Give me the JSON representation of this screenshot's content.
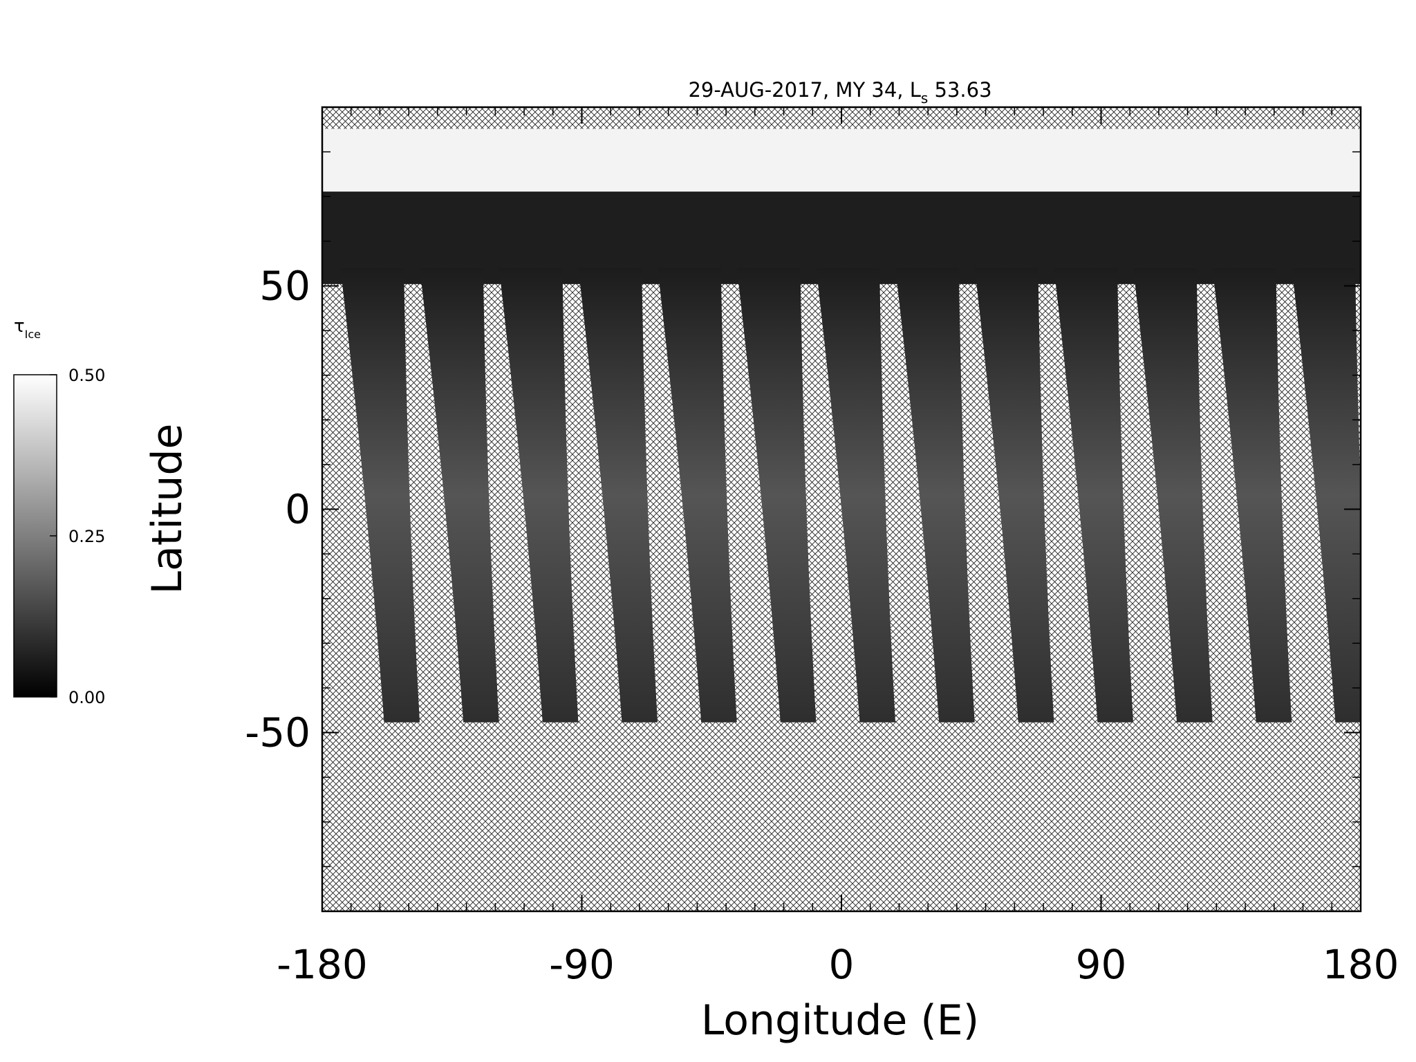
{
  "chart_data": {
    "type": "image_map",
    "title": [
      "29-AUG-2017, MY 34,  L",
      "s",
      " 53.63"
    ],
    "xlabel": "Longitude (E)",
    "ylabel": "Latitude",
    "xlim": [
      -180,
      180
    ],
    "xticks": [
      -180,
      -90,
      0,
      90,
      180
    ],
    "ylim": [
      -90,
      90
    ],
    "yticks": [
      -50,
      0,
      50
    ],
    "colorbar": {
      "label": "τ",
      "label_sub": "Ice",
      "lim": [
        0,
        0.5
      ],
      "ticks": [
        {
          "value": 0,
          "label": "0.00"
        },
        {
          "value": 0.25,
          "label": "0.25"
        },
        {
          "value": 0.5,
          "label": "0.50"
        }
      ],
      "colors": [
        "#000000",
        "#ffffff"
      ]
    }
  }
}
